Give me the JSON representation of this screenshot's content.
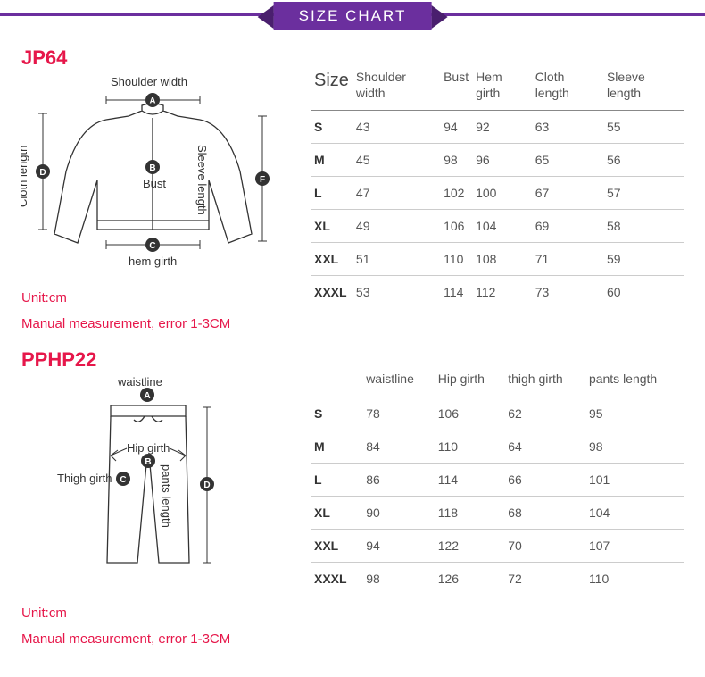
{
  "banner": {
    "title": "SIZE CHART"
  },
  "colors": {
    "accent": "#e6174a",
    "banner": "#6b2f9e",
    "bannerDark": "#4a1f6e",
    "border": "#888"
  },
  "jacket": {
    "code": "JP64",
    "unit": "Unit:cm",
    "note": "Manual measurement, error 1-3CM",
    "diagram": {
      "shoulder": "Shoulder width",
      "bust": "Bust",
      "hem": "hem girth",
      "cloth": "Cloth length",
      "sleeve": "Sleeve length",
      "markers": {
        "a": "A",
        "b": "B",
        "c": "C",
        "d": "D",
        "f": "F"
      }
    },
    "table": {
      "sizeHdr": "Size",
      "columns": [
        "Shoulder width",
        "Bust",
        "Hem girth",
        "Cloth length",
        "Sleeve length"
      ],
      "rows": [
        {
          "size": "S",
          "v": [
            "43",
            "94",
            "92",
            "63",
            "55"
          ]
        },
        {
          "size": "M",
          "v": [
            "45",
            "98",
            "96",
            "65",
            "56"
          ]
        },
        {
          "size": "L",
          "v": [
            "47",
            "102",
            "100",
            "67",
            "57"
          ]
        },
        {
          "size": "XL",
          "v": [
            "49",
            "106",
            "104",
            "69",
            "58"
          ]
        },
        {
          "size": "XXL",
          "v": [
            "51",
            "110",
            "108",
            "71",
            "59"
          ]
        },
        {
          "size": "XXXL",
          "v": [
            "53",
            "114",
            "112",
            "73",
            "60"
          ]
        }
      ]
    }
  },
  "pants": {
    "code": "PPHP22",
    "unit": "Unit:cm",
    "note": "Manual measurement, error 1-3CM",
    "diagram": {
      "waist": "waistline",
      "hip": "Hip girth",
      "thigh": "Thigh girth",
      "length": "pants length",
      "markers": {
        "a": "A",
        "b": "B",
        "c": "C",
        "d": "D"
      }
    },
    "table": {
      "sizeHdr": "",
      "columns": [
        "waistline",
        "Hip girth",
        "thigh girth",
        "pants length"
      ],
      "rows": [
        {
          "size": "S",
          "v": [
            "78",
            "106",
            "62",
            "95"
          ]
        },
        {
          "size": "M",
          "v": [
            "84",
            "110",
            "64",
            "98"
          ]
        },
        {
          "size": "L",
          "v": [
            "86",
            "114",
            "66",
            "101"
          ]
        },
        {
          "size": "XL",
          "v": [
            "90",
            "118",
            "68",
            "104"
          ]
        },
        {
          "size": "XXL",
          "v": [
            "94",
            "122",
            "70",
            "107"
          ]
        },
        {
          "size": "XXXL",
          "v": [
            "98",
            "126",
            "72",
            "110"
          ]
        }
      ]
    }
  }
}
